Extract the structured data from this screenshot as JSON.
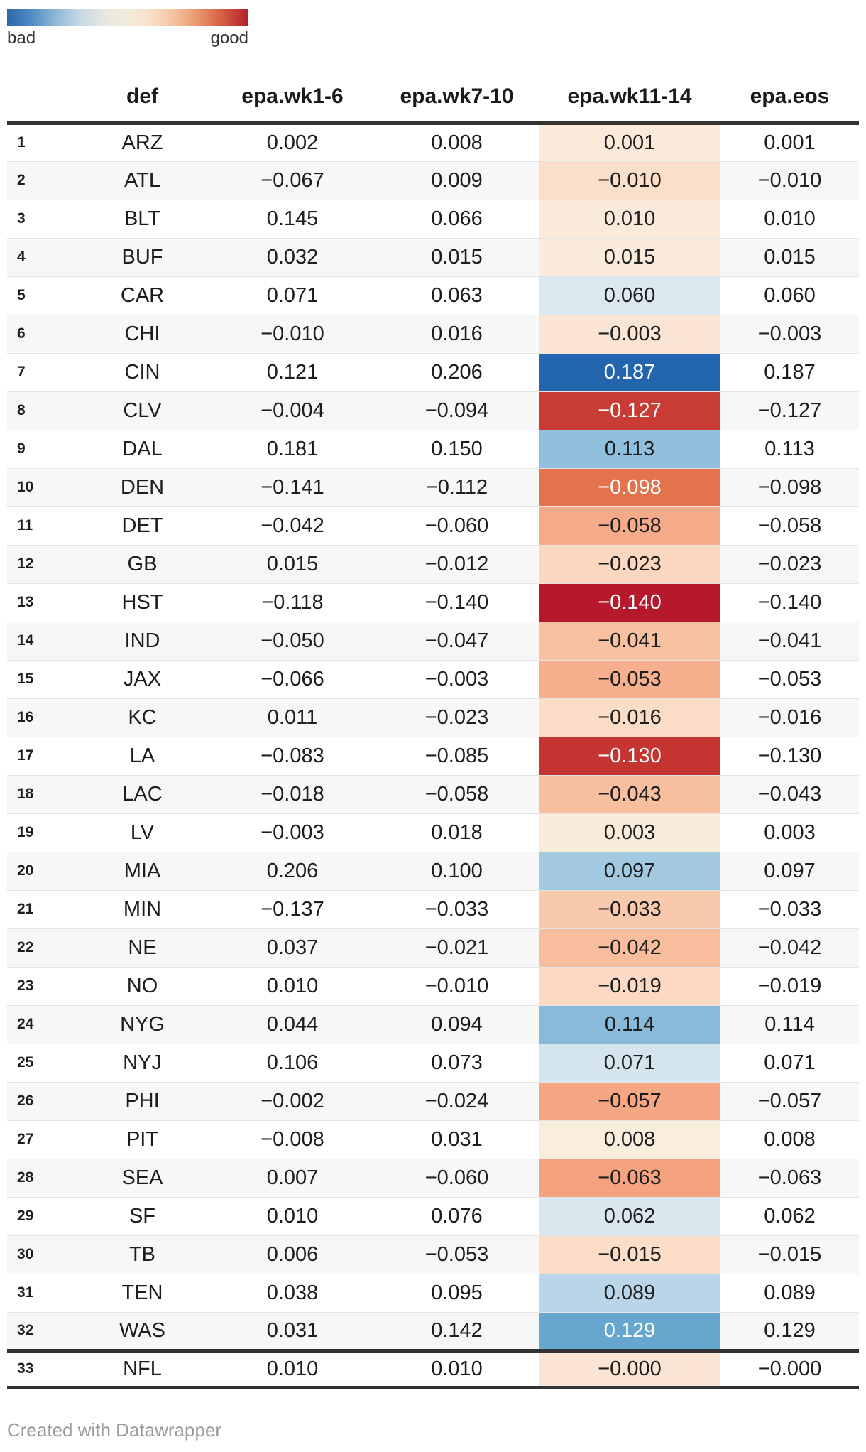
{
  "legend": {
    "bad_label": "bad",
    "good_label": "good",
    "scale_left_color": "#2d68ab",
    "scale_mid_color": "#f3ecdc",
    "scale_right_color": "#b21f2d"
  },
  "footer": {
    "credit": "Created with Datawrapper"
  },
  "chart_data": {
    "type": "table",
    "columns": [
      "",
      "def",
      "epa.wk1-6",
      "epa.wk7-10",
      "epa.wk11-14",
      "epa.eos"
    ],
    "legend": {
      "left_label": "bad",
      "right_label": "good"
    },
    "heatmap_column": "epa.wk11-14",
    "heatmap_note": "epa.wk11-14 cells are shaded on a diverging blue(bad: high EPA)-to-red(good: low EPA) scale",
    "rows": [
      {
        "rank": "1",
        "def": "ARZ",
        "wk1_6": "0.002",
        "wk7_10": "0.008",
        "wk11_14": "0.001",
        "eos": "0.001",
        "cell_bg": "#fbe9da",
        "cell_text": "#1d1d1d"
      },
      {
        "rank": "2",
        "def": "ATL",
        "wk1_6": "−0.067",
        "wk7_10": "0.009",
        "wk11_14": "−0.010",
        "eos": "−0.010",
        "cell_bg": "#fadfca",
        "cell_text": "#1d1d1d"
      },
      {
        "rank": "3",
        "def": "BLT",
        "wk1_6": "0.145",
        "wk7_10": "0.066",
        "wk11_14": "0.010",
        "eos": "0.010",
        "cell_bg": "#faeadb",
        "cell_text": "#1d1d1d"
      },
      {
        "rank": "4",
        "def": "BUF",
        "wk1_6": "0.032",
        "wk7_10": "0.015",
        "wk11_14": "0.015",
        "eos": "0.015",
        "cell_bg": "#faebdc",
        "cell_text": "#1d1d1d"
      },
      {
        "rank": "5",
        "def": "CAR",
        "wk1_6": "0.071",
        "wk7_10": "0.063",
        "wk11_14": "0.060",
        "eos": "0.060",
        "cell_bg": "#dce8ef",
        "cell_text": "#1d1d1d"
      },
      {
        "rank": "6",
        "def": "CHI",
        "wk1_6": "−0.010",
        "wk7_10": "0.016",
        "wk11_14": "−0.003",
        "eos": "−0.003",
        "cell_bg": "#fae4d3",
        "cell_text": "#1d1d1d"
      },
      {
        "rank": "7",
        "def": "CIN",
        "wk1_6": "0.121",
        "wk7_10": "0.206",
        "wk11_14": "0.187",
        "eos": "0.187",
        "cell_bg": "#2366ad",
        "cell_text": "#ffffff"
      },
      {
        "rank": "8",
        "def": "CLV",
        "wk1_6": "−0.004",
        "wk7_10": "−0.094",
        "wk11_14": "−0.127",
        "eos": "−0.127",
        "cell_bg": "#c93b35",
        "cell_text": "#ffffff"
      },
      {
        "rank": "9",
        "def": "DAL",
        "wk1_6": "0.181",
        "wk7_10": "0.150",
        "wk11_14": "0.113",
        "eos": "0.113",
        "cell_bg": "#90c0de",
        "cell_text": "#1d1d1d"
      },
      {
        "rank": "10",
        "def": "DEN",
        "wk1_6": "−0.141",
        "wk7_10": "−0.112",
        "wk11_14": "−0.098",
        "eos": "−0.098",
        "cell_bg": "#e2734d",
        "cell_text": "#ffffff"
      },
      {
        "rank": "11",
        "def": "DET",
        "wk1_6": "−0.042",
        "wk7_10": "−0.060",
        "wk11_14": "−0.058",
        "eos": "−0.058",
        "cell_bg": "#f5ab89",
        "cell_text": "#1d1d1d"
      },
      {
        "rank": "12",
        "def": "GB",
        "wk1_6": "0.015",
        "wk7_10": "−0.012",
        "wk11_14": "−0.023",
        "eos": "−0.023",
        "cell_bg": "#fbd7bf",
        "cell_text": "#1d1d1d"
      },
      {
        "rank": "13",
        "def": "HST",
        "wk1_6": "−0.118",
        "wk7_10": "−0.140",
        "wk11_14": "−0.140",
        "eos": "−0.140",
        "cell_bg": "#b6192b",
        "cell_text": "#ffffff"
      },
      {
        "rank": "14",
        "def": "IND",
        "wk1_6": "−0.050",
        "wk7_10": "−0.047",
        "wk11_14": "−0.041",
        "eos": "−0.041",
        "cell_bg": "#f8c2a2",
        "cell_text": "#1d1d1d"
      },
      {
        "rank": "15",
        "def": "JAX",
        "wk1_6": "−0.066",
        "wk7_10": "−0.003",
        "wk11_14": "−0.053",
        "eos": "−0.053",
        "cell_bg": "#f6b08e",
        "cell_text": "#1d1d1d"
      },
      {
        "rank": "16",
        "def": "KC",
        "wk1_6": "0.011",
        "wk7_10": "−0.023",
        "wk11_14": "−0.016",
        "eos": "−0.016",
        "cell_bg": "#fbdcc6",
        "cell_text": "#1d1d1d"
      },
      {
        "rank": "17",
        "def": "LA",
        "wk1_6": "−0.083",
        "wk7_10": "−0.085",
        "wk11_14": "−0.130",
        "eos": "−0.130",
        "cell_bg": "#c43431",
        "cell_text": "#ffffff"
      },
      {
        "rank": "18",
        "def": "LAC",
        "wk1_6": "−0.018",
        "wk7_10": "−0.058",
        "wk11_14": "−0.043",
        "eos": "−0.043",
        "cell_bg": "#f8bf9f",
        "cell_text": "#1d1d1d"
      },
      {
        "rank": "19",
        "def": "LV",
        "wk1_6": "−0.003",
        "wk7_10": "0.018",
        "wk11_14": "0.003",
        "eos": "0.003",
        "cell_bg": "#f9ecdb",
        "cell_text": "#1d1d1d"
      },
      {
        "rank": "20",
        "def": "MIA",
        "wk1_6": "0.206",
        "wk7_10": "0.100",
        "wk11_14": "0.097",
        "eos": "0.097",
        "cell_bg": "#a3c9e1",
        "cell_text": "#1d1d1d"
      },
      {
        "rank": "21",
        "def": "MIN",
        "wk1_6": "−0.137",
        "wk7_10": "−0.033",
        "wk11_14": "−0.033",
        "eos": "−0.033",
        "cell_bg": "#f9c9ae",
        "cell_text": "#1d1d1d"
      },
      {
        "rank": "22",
        "def": "NE",
        "wk1_6": "0.037",
        "wk7_10": "−0.021",
        "wk11_14": "−0.042",
        "eos": "−0.042",
        "cell_bg": "#f8bd9d",
        "cell_text": "#1d1d1d"
      },
      {
        "rank": "23",
        "def": "NO",
        "wk1_6": "0.010",
        "wk7_10": "−0.010",
        "wk11_14": "−0.019",
        "eos": "−0.019",
        "cell_bg": "#fbd9c2",
        "cell_text": "#1d1d1d"
      },
      {
        "rank": "24",
        "def": "NYG",
        "wk1_6": "0.044",
        "wk7_10": "0.094",
        "wk11_14": "0.114",
        "eos": "0.114",
        "cell_bg": "#8abada",
        "cell_text": "#1d1d1d"
      },
      {
        "rank": "25",
        "def": "NYJ",
        "wk1_6": "0.106",
        "wk7_10": "0.073",
        "wk11_14": "0.071",
        "eos": "0.071",
        "cell_bg": "#d5e5ee",
        "cell_text": "#1d1d1d"
      },
      {
        "rank": "26",
        "def": "PHI",
        "wk1_6": "−0.002",
        "wk7_10": "−0.024",
        "wk11_14": "−0.057",
        "eos": "−0.057",
        "cell_bg": "#f5a683",
        "cell_text": "#1d1d1d"
      },
      {
        "rank": "27",
        "def": "PIT",
        "wk1_6": "−0.008",
        "wk7_10": "0.031",
        "wk11_14": "0.008",
        "eos": "0.008",
        "cell_bg": "#f9eedd",
        "cell_text": "#1d1d1d"
      },
      {
        "rank": "28",
        "def": "SEA",
        "wk1_6": "0.007",
        "wk7_10": "−0.060",
        "wk11_14": "−0.063",
        "eos": "−0.063",
        "cell_bg": "#f5a37f",
        "cell_text": "#1d1d1d"
      },
      {
        "rank": "29",
        "def": "SF",
        "wk1_6": "0.010",
        "wk7_10": "0.076",
        "wk11_14": "0.062",
        "eos": "0.062",
        "cell_bg": "#dae7ef",
        "cell_text": "#1d1d1d"
      },
      {
        "rank": "30",
        "def": "TB",
        "wk1_6": "0.006",
        "wk7_10": "−0.053",
        "wk11_14": "−0.015",
        "eos": "−0.015",
        "cell_bg": "#fbddc8",
        "cell_text": "#1d1d1d"
      },
      {
        "rank": "31",
        "def": "TEN",
        "wk1_6": "0.038",
        "wk7_10": "0.095",
        "wk11_14": "0.089",
        "eos": "0.089",
        "cell_bg": "#b9d5e7",
        "cell_text": "#1d1d1d"
      },
      {
        "rank": "32",
        "def": "WAS",
        "wk1_6": "0.031",
        "wk7_10": "0.142",
        "wk11_14": "0.129",
        "eos": "0.129",
        "cell_bg": "#67a6ce",
        "cell_text": "#ffffff"
      },
      {
        "rank": "33",
        "def": "NFL",
        "wk1_6": "0.010",
        "wk7_10": "0.010",
        "wk11_14": "−0.000",
        "eos": "−0.000",
        "cell_bg": "#fae4d3",
        "cell_text": "#1d1d1d",
        "summary": true
      }
    ]
  }
}
